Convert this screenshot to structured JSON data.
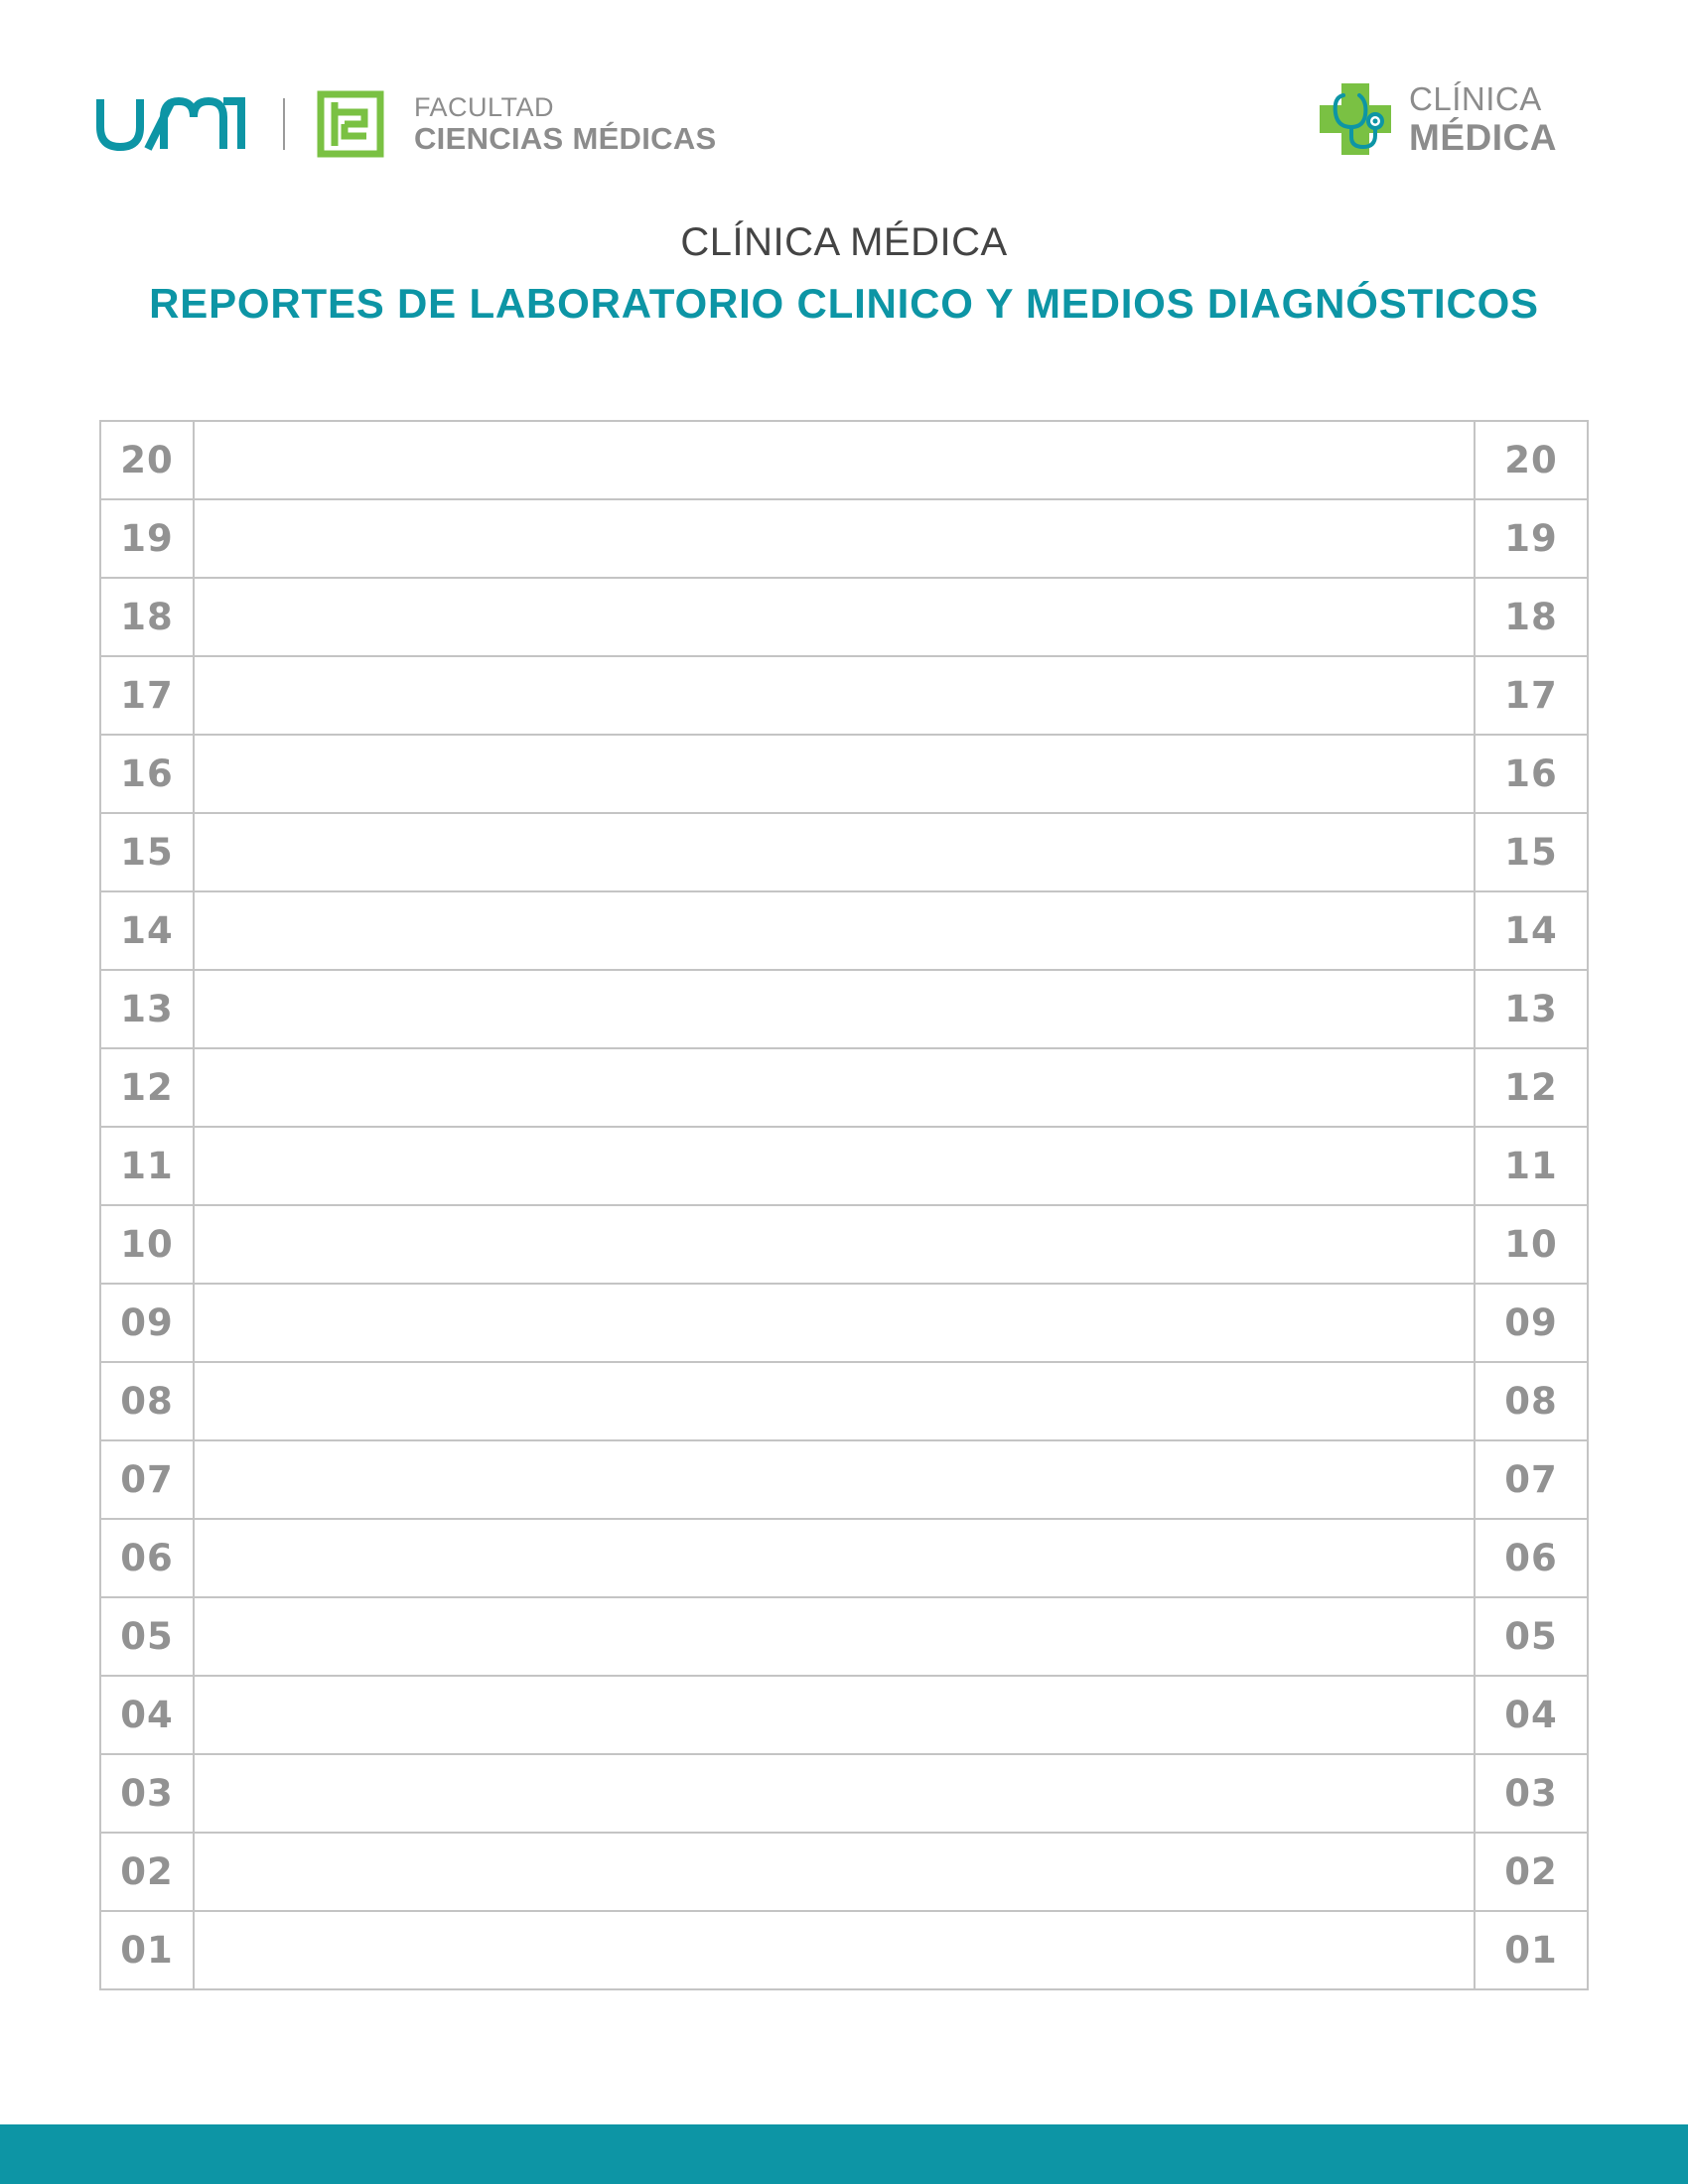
{
  "header": {
    "uam_logo_text": "UAM",
    "faculty_line1": "FACULTAD",
    "faculty_line2": "CIENCIAS MÉDICAS",
    "clinic_line1": "CLÍNICA",
    "clinic_line2": "MÉDICA"
  },
  "title": "CLÍNICA MÉDICA",
  "subtitle": "REPORTES DE LABORATORIO CLINICO Y MEDIOS DIAGNÓSTICOS",
  "rows": [
    "20",
    "19",
    "18",
    "17",
    "16",
    "15",
    "14",
    "13",
    "12",
    "11",
    "10",
    "09",
    "08",
    "07",
    "06",
    "05",
    "04",
    "03",
    "02",
    "01"
  ],
  "colors": {
    "brand_teal": "#0d95a5",
    "brand_green": "#7ac143",
    "text_gray": "#8c8c8c",
    "grid_gray": "#c4c4c4"
  },
  "icons": {
    "uam": "uam-logo",
    "faculty": "faculty-emblem-icon",
    "clinic": "cross-stethoscope-icon"
  }
}
